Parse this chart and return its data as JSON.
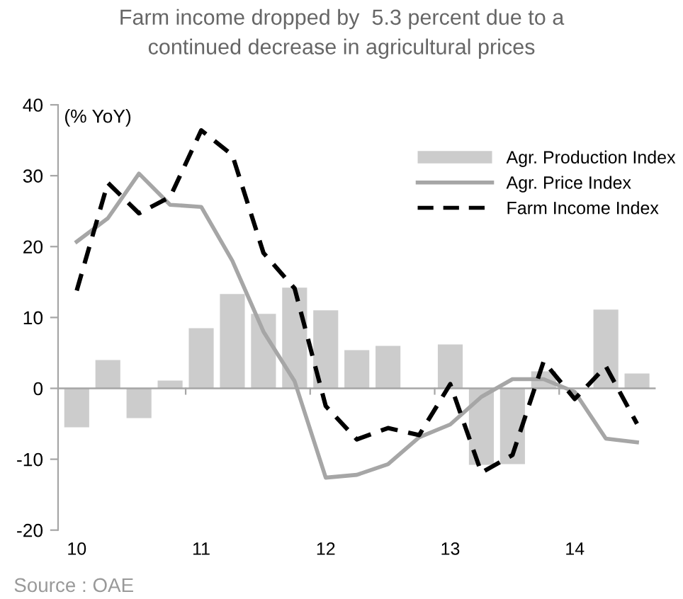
{
  "chart_data": {
    "type": "bar",
    "title": "Farm income dropped by  5.3 percent due to a\ncontinued decrease in agricultural prices",
    "ylabel": "(% YoY)",
    "categories": [
      "10",
      null,
      null,
      null,
      "11",
      null,
      null,
      null,
      "12",
      null,
      null,
      null,
      "13",
      null,
      null,
      null,
      "14",
      null,
      null
    ],
    "series": [
      {
        "name": "Agr. Production Index",
        "color": "#cccccc",
        "values": [
          -5.5,
          4,
          -4.2,
          1.1,
          8.5,
          13.3,
          10.5,
          14.2,
          11,
          5.4,
          6,
          0,
          6.2,
          -10.8,
          -10.7,
          2.4,
          null,
          11.1,
          2.1
        ]
      },
      {
        "name": "Agr. Price Index",
        "type": "line",
        "color": "#a6a6a6",
        "line_style": "solid",
        "values": [
          20.7,
          24,
          30.3,
          25.9,
          25.6,
          18,
          8,
          1,
          -12.6,
          -12.2,
          -10.7,
          -6.9,
          -5.1,
          -1.2,
          1.3,
          1.3,
          -0.5,
          -7.1,
          -7.6
        ]
      },
      {
        "name": "Farm Income Index",
        "type": "line",
        "color": "#000000",
        "line_style": "dashed",
        "values": [
          13.8,
          29,
          24.7,
          27,
          36.4,
          32.9,
          19.1,
          14.1,
          -2.5,
          -7.2,
          -5.6,
          -6.6,
          0.6,
          -11.9,
          -9.4,
          3.8,
          -1.5,
          3.1,
          -5
        ]
      }
    ],
    "ylim": [
      -20,
      40
    ],
    "yticks": [
      -20,
      -10,
      0,
      10,
      20,
      30,
      40
    ],
    "grid": false,
    "legend": "top right",
    "ref_lines": [
      {
        "axis": "y",
        "value": 0,
        "color": "#a6a6a6",
        "line_style": "solid"
      }
    ],
    "annotations": [
      "Source : OAE"
    ]
  }
}
